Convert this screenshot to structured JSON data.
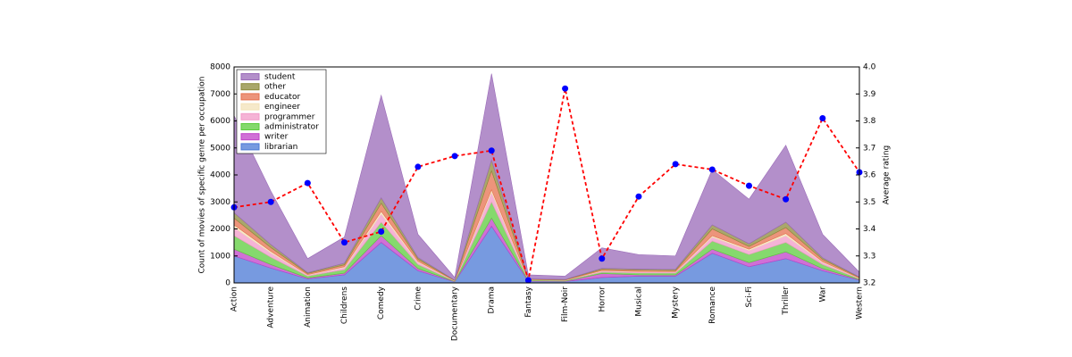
{
  "chart_data": {
    "type": "area",
    "categories": [
      "Action",
      "Adventure",
      "Animation",
      "Childrens",
      "Comedy",
      "Crime",
      "Documentary",
      "Drama",
      "Fantasy",
      "Film-Noir",
      "Horror",
      "Musical",
      "Mystery",
      "Romance",
      "Sci-Fi",
      "Thriller",
      "War",
      "Western"
    ],
    "y_label": "Count of movies of specific genre per occupation",
    "y2_label": "Average rating",
    "ylim": [
      0,
      8000
    ],
    "yticks": [
      0,
      1000,
      2000,
      3000,
      4000,
      5000,
      6000,
      7000,
      8000
    ],
    "y2lim": [
      3.2,
      4.0
    ],
    "y2ticks": [
      3.2,
      3.3,
      3.4,
      3.5,
      3.6,
      3.7,
      3.8,
      3.9,
      {
        "value": 4.0,
        "label": "4.0"
      }
    ],
    "legend": "upper left",
    "series": [
      {
        "name": "librarian",
        "color": "#4a78d6",
        "values": [
          1000,
          550,
          150,
          300,
          1500,
          450,
          40,
          2100,
          60,
          50,
          200,
          250,
          250,
          1100,
          600,
          900,
          450,
          100
        ]
      },
      {
        "name": "writer",
        "color": "#c040c8",
        "values": [
          250,
          130,
          35,
          60,
          250,
          80,
          10,
          300,
          15,
          15,
          150,
          50,
          45,
          150,
          150,
          250,
          80,
          20
        ]
      },
      {
        "name": "administrator",
        "color": "#5ccc3c",
        "values": [
          500,
          270,
          70,
          130,
          500,
          150,
          15,
          600,
          25,
          20,
          50,
          70,
          70,
          300,
          300,
          350,
          150,
          30
        ]
      },
      {
        "name": "programmer",
        "color": "#f29ac8",
        "values": [
          300,
          160,
          40,
          80,
          300,
          90,
          10,
          350,
          15,
          10,
          40,
          40,
          40,
          150,
          150,
          250,
          80,
          20
        ]
      },
      {
        "name": "engineer",
        "color": "#f3e2b8",
        "values": [
          100,
          60,
          15,
          30,
          100,
          30,
          5,
          100,
          5,
          5,
          20,
          15,
          15,
          50,
          50,
          80,
          30,
          10
        ]
      },
      {
        "name": "educator",
        "color": "#e5704f",
        "values": [
          250,
          140,
          40,
          70,
          300,
          80,
          10,
          700,
          15,
          15,
          40,
          50,
          40,
          250,
          100,
          220,
          80,
          20
        ]
      },
      {
        "name": "other",
        "color": "#8c8a3a",
        "values": [
          200,
          110,
          30,
          60,
          200,
          60,
          10,
          400,
          15,
          10,
          40,
          35,
          40,
          150,
          100,
          200,
          60,
          20
        ]
      },
      {
        "name": "student",
        "color": "#9a6ab8",
        "values": [
          3600,
          1980,
          520,
          970,
          3800,
          860,
          100,
          3200,
          150,
          125,
          760,
          540,
          500,
          2050,
          1650,
          2850,
          870,
          180
        ]
      },
      {
        "type": "line",
        "axis": "y2",
        "color": "#ff0000",
        "marker_color": "#0000ff",
        "values": [
          3.48,
          3.5,
          3.57,
          3.35,
          3.39,
          3.63,
          3.67,
          3.69,
          3.21,
          3.92,
          3.29,
          3.52,
          3.64,
          3.62,
          3.56,
          3.51,
          3.81,
          3.61
        ]
      }
    ]
  }
}
